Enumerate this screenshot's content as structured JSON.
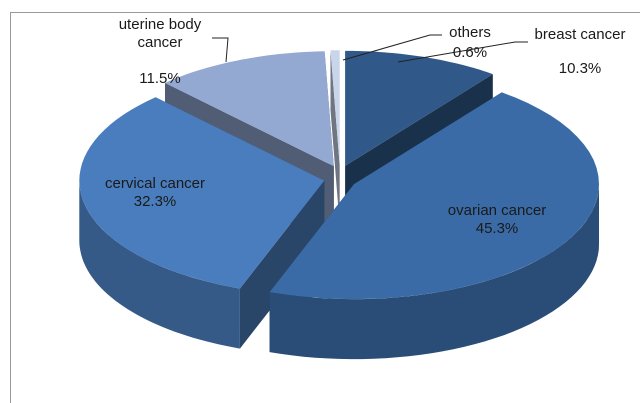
{
  "chart_data": {
    "type": "pie",
    "categories": [
      "breast cancer",
      "ovarian cancer",
      "cervical cancer",
      "uterine body cancer",
      "others"
    ],
    "values": [
      10.3,
      45.3,
      32.3,
      11.5,
      0.6
    ],
    "value_labels": [
      "10.3%",
      "45.3%",
      "32.3%",
      "11.5%",
      "0.6%"
    ],
    "colors": [
      "#30598a",
      "#3a6ba6",
      "#4a7dbd",
      "#93a9d2",
      "#c9d5ea"
    ]
  }
}
